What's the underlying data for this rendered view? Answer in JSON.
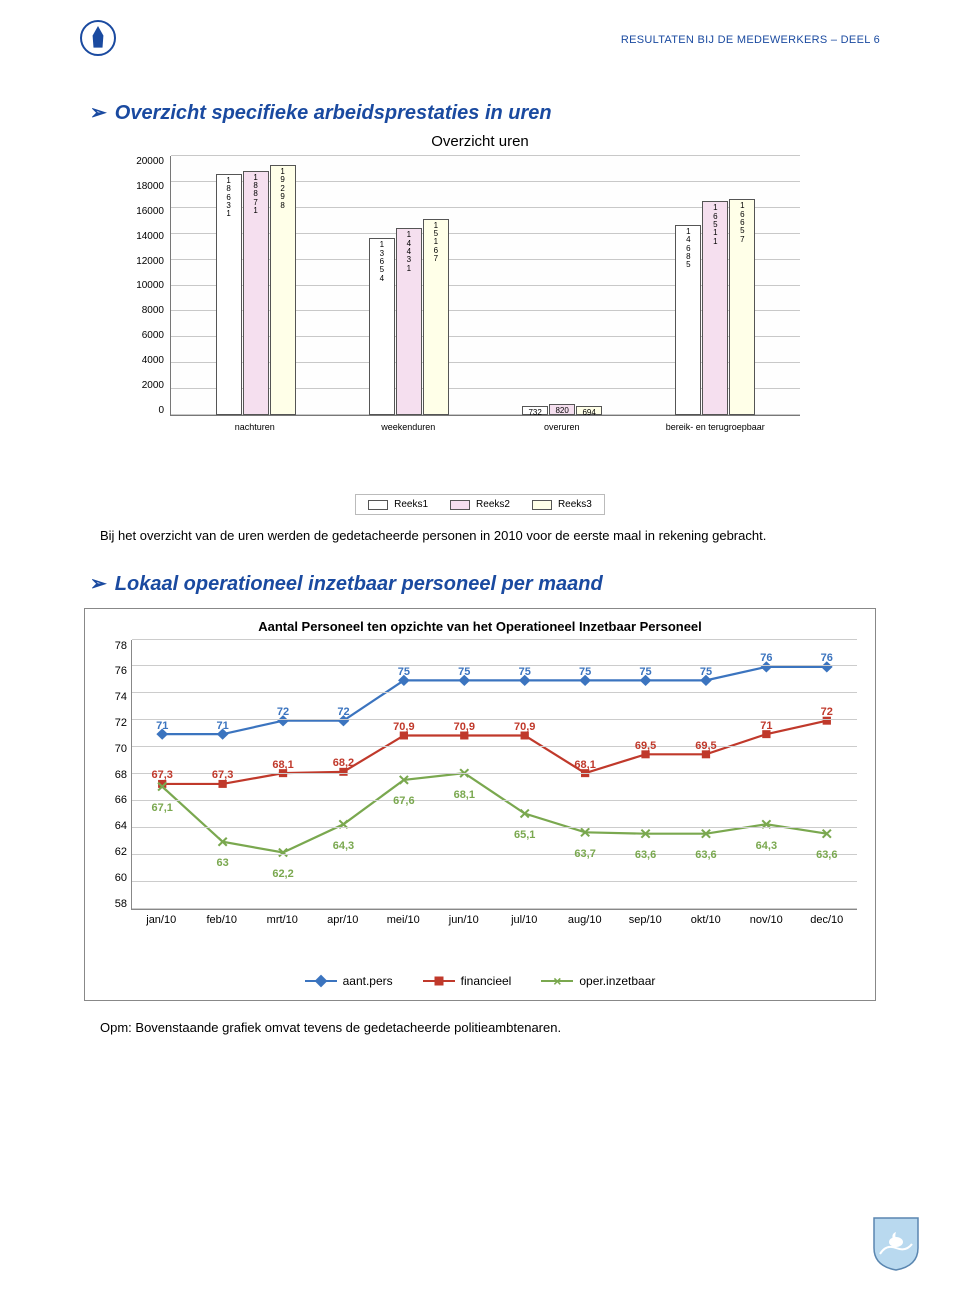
{
  "header": {
    "title": "RESULTATEN BIJ DE MEDEWERKERS – DEEL 6"
  },
  "section1": {
    "heading": "Overzicht specifieke arbeidsprestaties in uren",
    "chart": {
      "type": "bar",
      "title": "Overzicht uren",
      "ymin": 0,
      "ymax": 20000,
      "ystep": 2000,
      "categories": [
        "nachturen",
        "weekenduren",
        "overuren",
        "bereik- en terugroepbaar"
      ],
      "series": [
        {
          "name": "Reeks1",
          "color": "#ffffff",
          "values": [
            18631,
            13654,
            732,
            14685
          ]
        },
        {
          "name": "Reeks2",
          "color": "#f5dfef",
          "values": [
            18871,
            14431,
            820,
            16511
          ]
        },
        {
          "name": "Reeks3",
          "color": "#ffffe8",
          "values": [
            19298,
            15167,
            694,
            16657
          ]
        }
      ],
      "bar_labels": [
        [
          "1\n8\n6\n3\n1",
          "1\n8\n8\n7\n1",
          "1\n9\n2\n9\n8"
        ],
        [
          "1\n3\n6\n5\n4",
          "1\n4\n4\n3\n1",
          "1\n5\n1\n6\n7"
        ],
        [
          "732",
          "820",
          "694"
        ],
        [
          "1\n4\n6\n8\n5",
          "1\n6\n5\n1\n1",
          "1\n6\n6\n5\n7"
        ]
      ],
      "background_color": "#fefefe",
      "grid_color": "#c8c8c8",
      "border_color": "#555555",
      "axis_fontsize": 10
    }
  },
  "body_text": "Bij het overzicht van de uren werden de gedetacheerde personen in 2010 voor de eerste maal in rekening gebracht.",
  "section2": {
    "heading": "Lokaal operationeel inzetbaar personeel per maand",
    "chart": {
      "type": "line",
      "title": "Aantal Personeel ten opzichte van het Operationeel Inzetbaar Personeel",
      "ymin": 58,
      "ymax": 78,
      "ystep": 2,
      "months": [
        "jan/10",
        "feb/10",
        "mrt/10",
        "apr/10",
        "mei/10",
        "jun/10",
        "jul/10",
        "aug/10",
        "sep/10",
        "okt/10",
        "nov/10",
        "dec/10"
      ],
      "series": [
        {
          "name": "aant.pers",
          "color": "#3b74bf",
          "marker": "diamond",
          "values": [
            71,
            71,
            72,
            72,
            75,
            75,
            75,
            75,
            75,
            75,
            76,
            76
          ],
          "labels": [
            "71",
            "71",
            "72",
            "72",
            "75",
            "75",
            "75",
            "75",
            "75",
            "75",
            "76",
            "76"
          ]
        },
        {
          "name": "financieel",
          "color": "#c0392b",
          "marker": "square",
          "values": [
            67.3,
            67.3,
            68.1,
            68.2,
            70.9,
            70.9,
            70.9,
            68.1,
            69.5,
            69.5,
            71,
            72
          ],
          "labels": [
            "67,3",
            "67,3",
            "68,1",
            "68,2",
            "70,9",
            "70,9",
            "70,9",
            "68,1",
            "69,5",
            "69,5",
            "71",
            "72"
          ]
        },
        {
          "name": "oper.inzetbaar",
          "color": "#7aa84f",
          "marker": "x",
          "values": [
            67.1,
            63,
            62.2,
            64.3,
            67.6,
            68.1,
            65.1,
            63.7,
            63.6,
            63.6,
            64.3,
            63.6
          ],
          "labels": [
            "67,1",
            "63",
            "62,2",
            "64,3",
            "67,6",
            "68,1",
            "65,1",
            "63,7",
            "63,6",
            "63,6",
            "64,3",
            "63,6"
          ]
        }
      ],
      "grid_color": "#cccccc",
      "label_fontsize": 11
    }
  },
  "footer_note": "Opm: Bovenstaande grafiek omvat tevens de gedetacheerde politieambtenaren.",
  "colors": {
    "primary": "#1a4aa0",
    "text": "#222222"
  }
}
